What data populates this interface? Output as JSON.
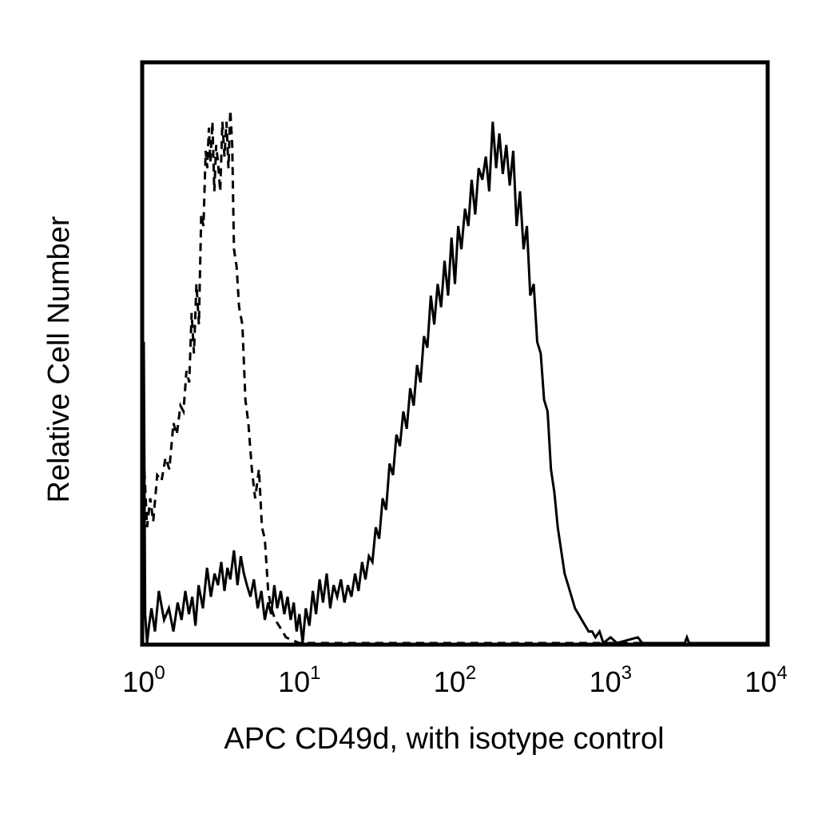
{
  "chart_data": {
    "type": "line",
    "title": "",
    "xlabel": "APC CD49d, with isotype control",
    "ylabel": "Relative Cell Number",
    "x_scale": "log",
    "xlim": [
      1,
      10000
    ],
    "ylim": [
      0,
      1
    ],
    "x_ticks": [
      {
        "base": "10",
        "exp": "0",
        "value": 1
      },
      {
        "base": "10",
        "exp": "1",
        "value": 10
      },
      {
        "base": "10",
        "exp": "2",
        "value": 100
      },
      {
        "base": "10",
        "exp": "3",
        "value": 1000
      },
      {
        "base": "10",
        "exp": "4",
        "value": 10000
      }
    ],
    "grid": false,
    "legend": "none",
    "series": [
      {
        "style": "solid",
        "color": "#000000",
        "points": [
          [
            1.0,
            0.52
          ],
          [
            1.02,
            0.05
          ],
          [
            1.05,
            0.0
          ],
          [
            1.08,
            0.03
          ],
          [
            1.12,
            0.06
          ],
          [
            1.18,
            0.02
          ],
          [
            1.25,
            0.09
          ],
          [
            1.35,
            0.04
          ],
          [
            1.45,
            0.06
          ],
          [
            1.55,
            0.02
          ],
          [
            1.65,
            0.07
          ],
          [
            1.75,
            0.04
          ],
          [
            1.85,
            0.09
          ],
          [
            1.95,
            0.05
          ],
          [
            2.05,
            0.08
          ],
          [
            2.15,
            0.03
          ],
          [
            2.25,
            0.1
          ],
          [
            2.4,
            0.06
          ],
          [
            2.55,
            0.13
          ],
          [
            2.7,
            0.08
          ],
          [
            2.85,
            0.12
          ],
          [
            3.0,
            0.1
          ],
          [
            3.15,
            0.14
          ],
          [
            3.3,
            0.09
          ],
          [
            3.45,
            0.13
          ],
          [
            3.6,
            0.11
          ],
          [
            3.8,
            0.16
          ],
          [
            4.0,
            0.1
          ],
          [
            4.2,
            0.15
          ],
          [
            4.4,
            0.12
          ],
          [
            4.6,
            0.1
          ],
          [
            4.85,
            0.08
          ],
          [
            5.1,
            0.11
          ],
          [
            5.4,
            0.06
          ],
          [
            5.7,
            0.09
          ],
          [
            6.0,
            0.04
          ],
          [
            6.3,
            0.07
          ],
          [
            6.6,
            0.05
          ],
          [
            6.9,
            0.1
          ],
          [
            7.2,
            0.06
          ],
          [
            7.6,
            0.09
          ],
          [
            8.0,
            0.05
          ],
          [
            8.4,
            0.08
          ],
          [
            8.8,
            0.04
          ],
          [
            9.2,
            0.07
          ],
          [
            9.6,
            0.02
          ],
          [
            10.0,
            0.05
          ],
          [
            10.5,
            0.0
          ],
          [
            11.0,
            0.06
          ],
          [
            11.6,
            0.03
          ],
          [
            12.2,
            0.09
          ],
          [
            12.8,
            0.05
          ],
          [
            13.5,
            0.11
          ],
          [
            14.2,
            0.07
          ],
          [
            15.0,
            0.12
          ],
          [
            15.8,
            0.06
          ],
          [
            16.6,
            0.1
          ],
          [
            17.5,
            0.08
          ],
          [
            18.5,
            0.11
          ],
          [
            19.5,
            0.07
          ],
          [
            20.5,
            0.1
          ],
          [
            21.6,
            0.08
          ],
          [
            22.8,
            0.12
          ],
          [
            24.0,
            0.09
          ],
          [
            25.3,
            0.14
          ],
          [
            26.6,
            0.11
          ],
          [
            28.0,
            0.15
          ],
          [
            29.5,
            0.14
          ],
          [
            31.0,
            0.2
          ],
          [
            32.6,
            0.18
          ],
          [
            34.3,
            0.25
          ],
          [
            36.1,
            0.23
          ],
          [
            38.0,
            0.31
          ],
          [
            40.0,
            0.29
          ],
          [
            42.1,
            0.36
          ],
          [
            44.3,
            0.34
          ],
          [
            46.6,
            0.4
          ],
          [
            49.0,
            0.37
          ],
          [
            51.6,
            0.44
          ],
          [
            54.3,
            0.41
          ],
          [
            57.1,
            0.48
          ],
          [
            60.1,
            0.45
          ],
          [
            63.2,
            0.53
          ],
          [
            66.5,
            0.51
          ],
          [
            70.0,
            0.6
          ],
          [
            73.6,
            0.55
          ],
          [
            77.5,
            0.62
          ],
          [
            81.5,
            0.58
          ],
          [
            85.8,
            0.66
          ],
          [
            90.3,
            0.6
          ],
          [
            95.0,
            0.7
          ],
          [
            100.0,
            0.62
          ],
          [
            105.0,
            0.72
          ],
          [
            110.0,
            0.68
          ],
          [
            116.0,
            0.75
          ],
          [
            122.0,
            0.72
          ],
          [
            128.0,
            0.8
          ],
          [
            135.0,
            0.74
          ],
          [
            142.0,
            0.82
          ],
          [
            150.0,
            0.8
          ],
          [
            158.0,
            0.84
          ],
          [
            166.0,
            0.78
          ],
          [
            175.0,
            0.9
          ],
          [
            184.0,
            0.82
          ],
          [
            193.0,
            0.88
          ],
          [
            203.0,
            0.81
          ],
          [
            214.0,
            0.86
          ],
          [
            225.0,
            0.79
          ],
          [
            237.0,
            0.85
          ],
          [
            249.0,
            0.72
          ],
          [
            262.0,
            0.78
          ],
          [
            276.0,
            0.68
          ],
          [
            290.0,
            0.72
          ],
          [
            305.0,
            0.6
          ],
          [
            321.0,
            0.62
          ],
          [
            338.0,
            0.52
          ],
          [
            356.0,
            0.5
          ],
          [
            374.0,
            0.42
          ],
          [
            394.0,
            0.4
          ],
          [
            414.0,
            0.3
          ],
          [
            436.0,
            0.26
          ],
          [
            458.0,
            0.2
          ],
          [
            482.0,
            0.16
          ],
          [
            507.0,
            0.12
          ],
          [
            534.0,
            0.1
          ],
          [
            562.0,
            0.08
          ],
          [
            591.0,
            0.06
          ],
          [
            622.0,
            0.05
          ],
          [
            654.0,
            0.04
          ],
          [
            688.0,
            0.03
          ],
          [
            724.0,
            0.02
          ],
          [
            762.0,
            0.02
          ],
          [
            800.0,
            0.01
          ],
          [
            850.0,
            0.02
          ],
          [
            900.0,
            0.0
          ],
          [
            1000.0,
            0.01
          ],
          [
            1100.0,
            0.0
          ],
          [
            1500.0,
            0.01
          ],
          [
            1600.0,
            0.0
          ],
          [
            3000.0,
            0.0
          ],
          [
            3100.0,
            0.01
          ],
          [
            3200.0,
            0.0
          ],
          [
            10000.0,
            0.0
          ]
        ]
      },
      {
        "style": "dashed",
        "color": "#000000",
        "points": [
          [
            1.0,
            0.32
          ],
          [
            1.05,
            0.2
          ],
          [
            1.1,
            0.25
          ],
          [
            1.15,
            0.21
          ],
          [
            1.22,
            0.29
          ],
          [
            1.3,
            0.28
          ],
          [
            1.38,
            0.32
          ],
          [
            1.46,
            0.3
          ],
          [
            1.55,
            0.38
          ],
          [
            1.63,
            0.36
          ],
          [
            1.72,
            0.41
          ],
          [
            1.8,
            0.4
          ],
          [
            1.88,
            0.47
          ],
          [
            1.96,
            0.45
          ],
          [
            2.03,
            0.57
          ],
          [
            2.1,
            0.5
          ],
          [
            2.18,
            0.62
          ],
          [
            2.26,
            0.55
          ],
          [
            2.34,
            0.74
          ],
          [
            2.42,
            0.72
          ],
          [
            2.5,
            0.85
          ],
          [
            2.56,
            0.82
          ],
          [
            2.62,
            0.89
          ],
          [
            2.68,
            0.83
          ],
          [
            2.76,
            0.9
          ],
          [
            2.84,
            0.78
          ],
          [
            2.92,
            0.86
          ],
          [
            3.0,
            0.83
          ],
          [
            3.1,
            0.78
          ],
          [
            3.2,
            0.9
          ],
          [
            3.3,
            0.84
          ],
          [
            3.4,
            0.9
          ],
          [
            3.5,
            0.82
          ],
          [
            3.6,
            0.92
          ],
          [
            3.7,
            0.86
          ],
          [
            3.8,
            0.68
          ],
          [
            3.95,
            0.65
          ],
          [
            4.1,
            0.58
          ],
          [
            4.3,
            0.55
          ],
          [
            4.5,
            0.42
          ],
          [
            4.7,
            0.38
          ],
          [
            4.95,
            0.3
          ],
          [
            5.2,
            0.25
          ],
          [
            5.5,
            0.3
          ],
          [
            5.75,
            0.2
          ],
          [
            6.0,
            0.18
          ],
          [
            6.3,
            0.09
          ],
          [
            6.6,
            0.06
          ],
          [
            7.0,
            0.04
          ],
          [
            7.4,
            0.03
          ],
          [
            7.8,
            0.02
          ],
          [
            8.2,
            0.01
          ],
          [
            9.0,
            0.005
          ],
          [
            10.0,
            0.0
          ],
          [
            100.0,
            0.0
          ],
          [
            10000.0,
            0.0
          ]
        ]
      }
    ]
  }
}
